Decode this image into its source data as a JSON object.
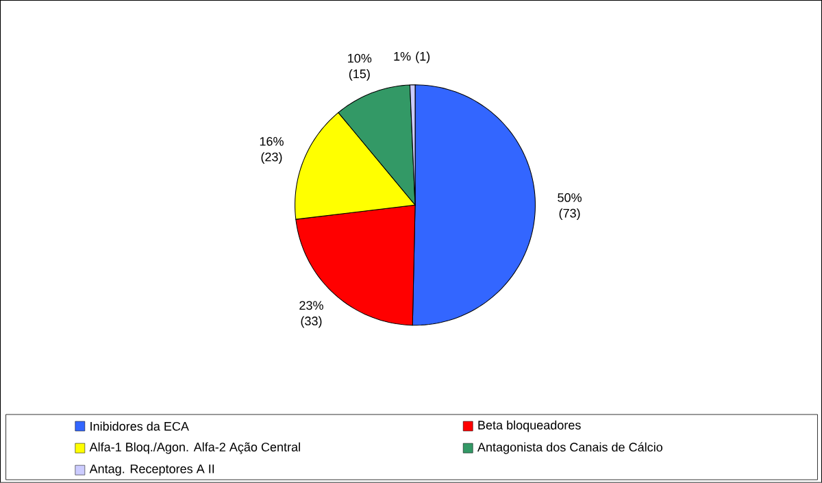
{
  "chart_data": {
    "type": "pie",
    "categories": [
      "Inibidores da ECA",
      "Beta bloqueadores",
      "Alfa-1 Bloq./Agon. Alfa-2 Ação Central",
      "Antagonista dos Canais de Cálcio",
      "Antag. Receptores A II"
    ],
    "values": [
      73,
      33,
      23,
      15,
      1
    ],
    "colors": [
      "#3366ff",
      "#ff0000",
      "#ffff00",
      "#339966",
      "#ccccff"
    ],
    "value_labels": [
      "50% (73)",
      "23% (33)",
      "16% (23)",
      "10% (15)",
      "1% (1)"
    ],
    "legend": "bottom"
  }
}
